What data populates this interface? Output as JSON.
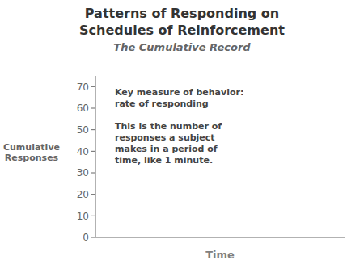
{
  "chart_data": {
    "type": "line",
    "title": "Patterns of Responding on\nSchedules of Reinforcement",
    "subtitle": "The Cumulative Record",
    "ylabel": "Cumulative\nResponses",
    "xlabel": "Time",
    "annotations": [
      "Key measure of behavior:\nrate of responding",
      "This is the number of\nresponses a subject\nmakes in a period of\ntime, like 1 minute."
    ],
    "xlim": [
      0,
      10
    ],
    "xticks": [],
    "ylim": [
      0,
      75
    ],
    "yticks": [
      0,
      10,
      20,
      30,
      40,
      50,
      60,
      70
    ],
    "tick_labels": "y",
    "grid": false
  }
}
